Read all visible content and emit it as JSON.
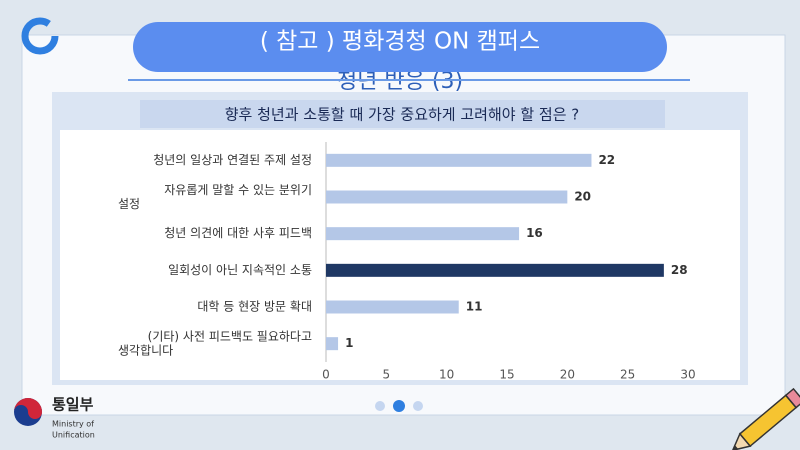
{
  "header": {
    "title": "( 참고 ) 평화경청  ON  캠퍼스",
    "subtitle": "청년 반응 (3)"
  },
  "logo": {
    "name": "통일부",
    "english": [
      "Ministry of",
      "Unification"
    ]
  },
  "chart_data": {
    "type": "hbar",
    "title": "향후 청년과 소통할 때 가장 중요하게 고려해야 할 점은 ?",
    "categories": [
      "청년의 일상과 연결된 주제 설정",
      "자유롭게 말할 수 있는 분위기 설정",
      "청년 의견에 대한 사후 피드백",
      "일회성이 아닌 지속적인 소통",
      "대학 등 현장 방문 확대",
      "(기타) 사전 피드백도 필요하다고 생각합니다"
    ],
    "values": [
      22,
      20,
      16,
      28,
      11,
      1
    ],
    "colors": [
      "#b4c7e7",
      "#b4c7e7",
      "#b4c7e7",
      "#1f3864",
      "#b4c7e7",
      "#b4c7e7"
    ],
    "xlim": [
      0,
      30
    ],
    "xticks": [
      0,
      5,
      10,
      15,
      20,
      25,
      30
    ],
    "grid": false
  }
}
